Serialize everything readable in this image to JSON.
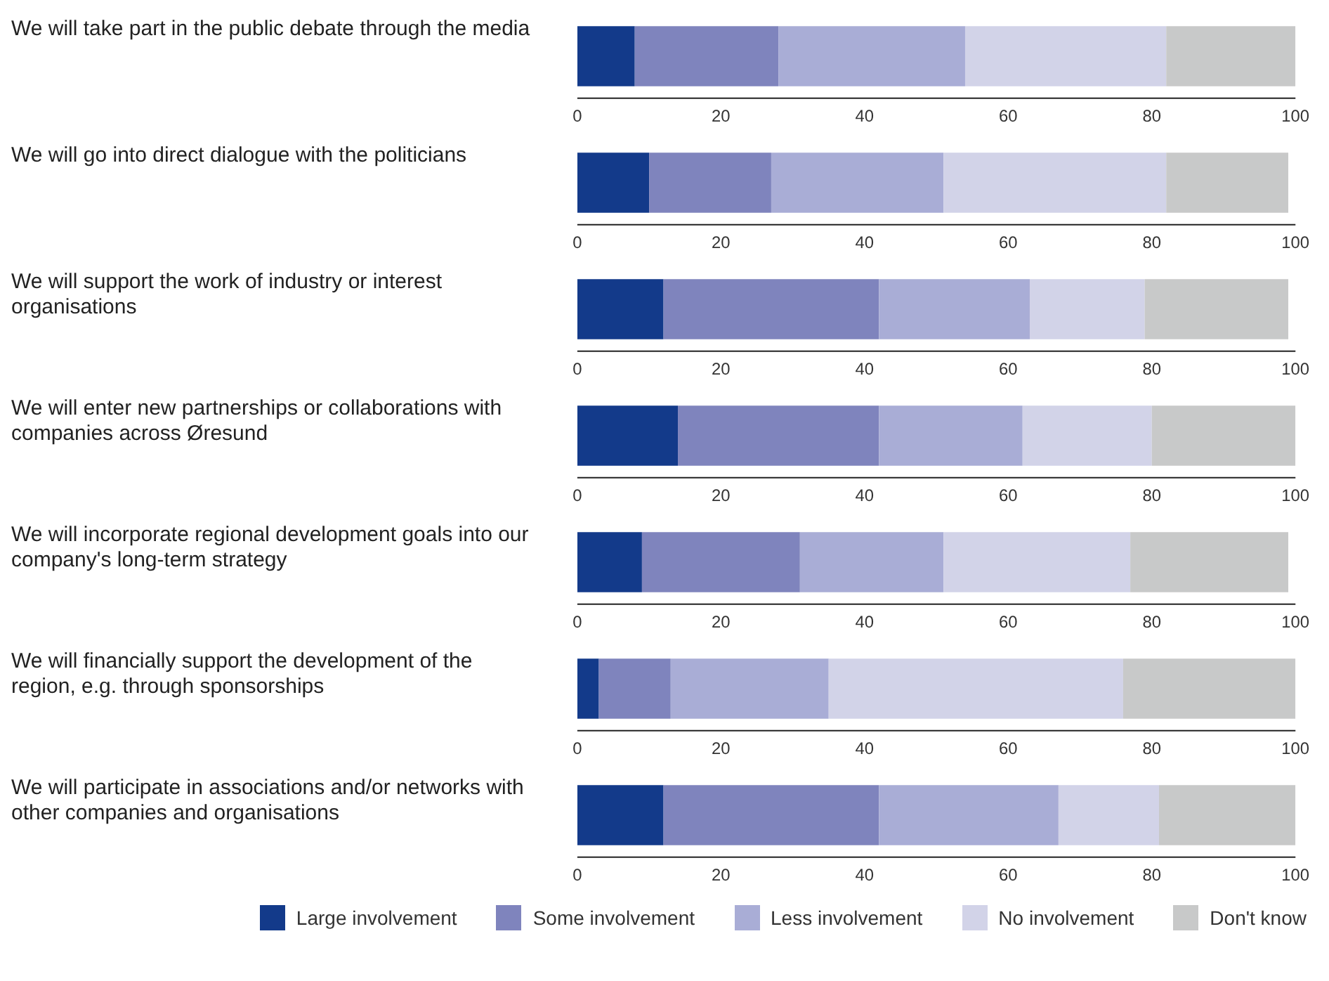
{
  "chart_data": [
    {
      "type": "bar",
      "orientation": "horizontal",
      "stacked": true,
      "categories": [
        "We will take part in the public debate through the media"
      ],
      "xlim": [
        0,
        100
      ],
      "xticks": [
        0,
        20,
        40,
        60,
        80,
        100
      ],
      "grid": false,
      "legend": false,
      "series": [
        {
          "color": "#133a8a",
          "values": [
            8
          ]
        },
        {
          "color": "#7f84bd",
          "values": [
            20
          ]
        },
        {
          "color": "#a9add6",
          "values": [
            26
          ]
        },
        {
          "color": "#d2d3e8",
          "values": [
            28
          ]
        },
        {
          "color": "#c8c9c9",
          "values": [
            18
          ]
        }
      ]
    },
    {
      "type": "bar",
      "orientation": "horizontal",
      "stacked": true,
      "categories": [
        "We will go into direct dialogue with the politicians"
      ],
      "xlim": [
        0,
        100
      ],
      "xticks": [
        0,
        20,
        40,
        60,
        80,
        100
      ],
      "grid": false,
      "legend": false,
      "series": [
        {
          "color": "#133a8a",
          "values": [
            10
          ]
        },
        {
          "color": "#7f84bd",
          "values": [
            17
          ]
        },
        {
          "color": "#a9add6",
          "values": [
            24
          ]
        },
        {
          "color": "#d2d3e8",
          "values": [
            31
          ]
        },
        {
          "color": "#c8c9c9",
          "values": [
            17
          ]
        }
      ]
    },
    {
      "type": "bar",
      "orientation": "horizontal",
      "stacked": true,
      "categories": [
        "We will support the work of industry or interest organisations"
      ],
      "xlim": [
        0,
        100
      ],
      "xticks": [
        0,
        20,
        40,
        60,
        80,
        100
      ],
      "grid": false,
      "legend": false,
      "series": [
        {
          "color": "#133a8a",
          "values": [
            12
          ]
        },
        {
          "color": "#7f84bd",
          "values": [
            30
          ]
        },
        {
          "color": "#a9add6",
          "values": [
            21
          ]
        },
        {
          "color": "#d2d3e8",
          "values": [
            16
          ]
        },
        {
          "color": "#c8c9c9",
          "values": [
            20
          ]
        }
      ]
    },
    {
      "type": "bar",
      "orientation": "horizontal",
      "stacked": true,
      "categories": [
        "We will enter new partnerships or collaborations with companies across Øresund"
      ],
      "xlim": [
        0,
        100
      ],
      "xticks": [
        0,
        20,
        40,
        60,
        80,
        100
      ],
      "grid": false,
      "legend": false,
      "series": [
        {
          "color": "#133a8a",
          "values": [
            14
          ]
        },
        {
          "color": "#7f84bd",
          "values": [
            28
          ]
        },
        {
          "color": "#a9add6",
          "values": [
            20
          ]
        },
        {
          "color": "#d2d3e8",
          "values": [
            18
          ]
        },
        {
          "color": "#c8c9c9",
          "values": [
            20
          ]
        }
      ]
    },
    {
      "type": "bar",
      "orientation": "horizontal",
      "stacked": true,
      "categories": [
        "We will incorporate regional development goals into our company's long-term strategy"
      ],
      "xlim": [
        0,
        100
      ],
      "xticks": [
        0,
        20,
        40,
        60,
        80,
        100
      ],
      "grid": false,
      "legend": false,
      "series": [
        {
          "color": "#133a8a",
          "values": [
            9
          ]
        },
        {
          "color": "#7f84bd",
          "values": [
            22
          ]
        },
        {
          "color": "#a9add6",
          "values": [
            20
          ]
        },
        {
          "color": "#d2d3e8",
          "values": [
            26
          ]
        },
        {
          "color": "#c8c9c9",
          "values": [
            22
          ]
        }
      ]
    },
    {
      "type": "bar",
      "orientation": "horizontal",
      "stacked": true,
      "categories": [
        "We will financially support the development of the region, e.g. through sponsorships"
      ],
      "xlim": [
        0,
        100
      ],
      "xticks": [
        0,
        20,
        40,
        60,
        80,
        100
      ],
      "grid": false,
      "legend": false,
      "series": [
        {
          "color": "#133a8a",
          "values": [
            3
          ]
        },
        {
          "color": "#7f84bd",
          "values": [
            10
          ]
        },
        {
          "color": "#a9add6",
          "values": [
            22
          ]
        },
        {
          "color": "#d2d3e8",
          "values": [
            41
          ]
        },
        {
          "color": "#c8c9c9",
          "values": [
            24
          ]
        }
      ]
    },
    {
      "type": "bar",
      "orientation": "horizontal",
      "stacked": true,
      "categories": [
        "We will participate in associations and/or networks with other companies and organisations"
      ],
      "xlim": [
        0,
        100
      ],
      "xticks": [
        0,
        20,
        40,
        60,
        80,
        100
      ],
      "grid": false,
      "legend": "bottom",
      "series": [
        {
          "name": "Large involvement",
          "color": "#133a8a",
          "values": [
            12
          ]
        },
        {
          "name": "Some involvement",
          "color": "#7f84bd",
          "values": [
            30
          ]
        },
        {
          "name": "Less involvement",
          "color": "#a9add6",
          "values": [
            25
          ]
        },
        {
          "name": "No involvement",
          "color": "#d2d3e8",
          "values": [
            14
          ]
        },
        {
          "name": "Don't know",
          "color": "#c8c9c9",
          "values": [
            19
          ]
        }
      ]
    }
  ]
}
